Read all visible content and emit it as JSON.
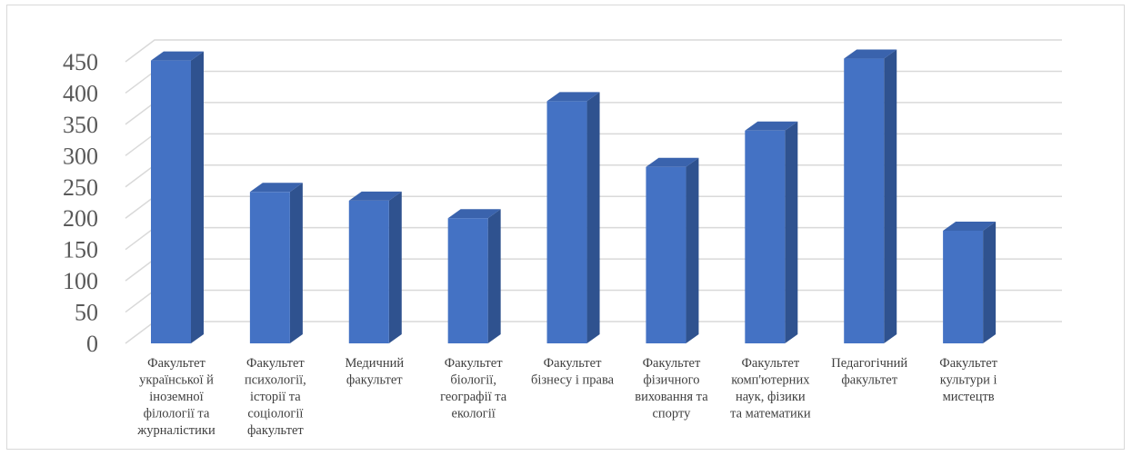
{
  "colors": {
    "bar_front": "#4472c4",
    "bar_side": "#2f528f",
    "bar_top": "#3a63ad",
    "grid": "#d9d9d9",
    "text": "#404040",
    "axis_text": "#595959"
  },
  "chart_data": {
    "type": "bar",
    "style": "3d-column",
    "title": "",
    "xlabel": "",
    "ylabel": "",
    "ylim": [
      0,
      450
    ],
    "yticks": [
      "0",
      "50",
      "100",
      "150",
      "200",
      "250",
      "300",
      "350",
      "400",
      "450"
    ],
    "grid": true,
    "legend": "none",
    "categories": [
      "Факультет української й іноземної філології та журналістики",
      "Факультет психології, історії та соціології факультет",
      "Медичний факультет",
      "Факультет біології, географії та екології",
      "Факультет бізнесу і права",
      "Факультет фізичного виховання та спорту",
      "Факультет комп'ютерних наук, фізики та математики",
      "Педагогічний факультет",
      "Факультет культури і мистецтв"
    ],
    "category_lines": [
      [
        "Факультет",
        "української й",
        "іноземної",
        "філології та",
        "журналістики"
      ],
      [
        "Факультет",
        "психології,",
        "історії та",
        "соціології",
        "факультет"
      ],
      [
        "Медичний",
        "факультет"
      ],
      [
        "Факультет",
        "біології,",
        "географії та",
        "екології"
      ],
      [
        "Факультет",
        "бізнесу і права"
      ],
      [
        "Факультет",
        "фізичного",
        "виховання та",
        "спорту"
      ],
      [
        "Факультет",
        "комп'ютерних",
        "наук, фізики",
        "та математики"
      ],
      [
        "Педагогічний",
        "факультет"
      ],
      [
        "Факультет",
        "культури і",
        "мистецтв"
      ]
    ],
    "values": [
      452,
      242,
      228,
      200,
      387,
      282,
      340,
      455,
      180
    ]
  }
}
